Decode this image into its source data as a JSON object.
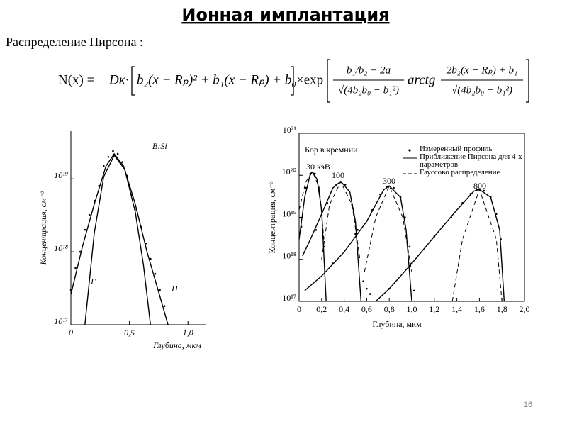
{
  "header": {
    "title": "Ионная имплантация",
    "subtitle": "Распределение Пирсона :"
  },
  "formula": {
    "lhs": "N(x) =",
    "factor": "Dκ·",
    "poly": "b₂(x − Rₚ)² + b₁(x − Rₚ) + b₀",
    "times": "×exp",
    "num1": "b₁/b₂ + 2a",
    "den1": "√(4b₂b₀ − b₁²)",
    "arctg": "arctg",
    "num2": "2b₂(x − Rₚ) + b₁",
    "den2": "√(4b₂b₀ − b₁²)"
  },
  "chart_data": [
    {
      "type": "line",
      "log_y": true,
      "frame": false,
      "xlabel": "Глубина, мкм",
      "ylabel": "Концентрация, см⁻³",
      "xlim": [
        0,
        1.15
      ],
      "ylim": [
        1e+17,
        4.5e+19
      ],
      "xticks": [
        0,
        {
          "value": 0.5,
          "label": "0,5"
        },
        {
          "value": 1.0,
          "label": "1,0"
        }
      ],
      "yticks": [
        {
          "value": 1e+17,
          "label": "10¹⁷"
        },
        {
          "value": 1e+18,
          "label": "10¹⁸"
        },
        {
          "value": 1e+19,
          "label": "10¹⁹"
        }
      ],
      "annotations": [
        "B:Si",
        "Г",
        "П"
      ],
      "series": [
        {
          "style": "points",
          "color": "#000",
          "x": [
            0,
            0.04,
            0.08,
            0.12,
            0.16,
            0.2,
            0.24,
            0.28,
            0.32,
            0.36,
            0.4,
            0.44,
            0.48,
            0.52,
            0.56,
            0.6,
            0.64,
            0.68,
            0.72,
            0.76,
            0.8
          ],
          "values": [
            3e+17,
            6e+17,
            1e+18,
            2e+18,
            3.2e+18,
            5e+18,
            8e+18,
            1.5e+19,
            2e+19,
            2.4e+19,
            2.2e+19,
            1.7e+19,
            1.1e+19,
            6e+18,
            3.8e+18,
            2.2e+18,
            1.3e+18,
            8e+17,
            5e+17,
            3e+17,
            1.8e+17
          ]
        },
        {
          "style": "solid",
          "color": "#000",
          "x": [
            0.12,
            0.2,
            0.28,
            0.37,
            0.46,
            0.55,
            0.62,
            0.68
          ],
          "values": [
            1e+17,
            1.8e+18,
            1.07e+19,
            2.1e+19,
            1.35e+19,
            3.5e+18,
            6.6e+17,
            1e+17
          ]
        },
        {
          "style": "solid",
          "color": "#000",
          "x": [
            0,
            0.1,
            0.2,
            0.3,
            0.37,
            0.45,
            0.55,
            0.65,
            0.75,
            0.83
          ],
          "values": [
            2.6e+17,
            1.2e+18,
            4.5e+18,
            1.5e+19,
            2.2e+19,
            1.5e+19,
            4.5e+18,
            1e+18,
            2.8e+17,
            1e+17
          ]
        }
      ]
    },
    {
      "type": "line",
      "log_y": true,
      "frame": true,
      "xlabel": "Глубина, мкм",
      "ylabel": "Концентрация, см⁻³",
      "xlim": [
        0,
        2.0
      ],
      "ylim": [
        1e+17,
        1e+21
      ],
      "legend": "upper right",
      "xticks": [
        0,
        {
          "value": 0.2,
          "label": "0,2"
        },
        {
          "value": 0.4,
          "label": "0,4"
        },
        {
          "value": 0.6,
          "label": "0,6"
        },
        {
          "value": 0.8,
          "label": "0,8"
        },
        {
          "value": 1.0,
          "label": "1,0"
        },
        {
          "value": 1.2,
          "label": "1,2"
        },
        {
          "value": 1.4,
          "label": "1,4"
        },
        {
          "value": 1.6,
          "label": "1,6"
        },
        {
          "value": 1.8,
          "label": "1,8"
        },
        {
          "value": 2.0,
          "label": "2,0"
        }
      ],
      "yticks": [
        {
          "value": 1e+17,
          "label": "10¹⁷"
        },
        {
          "value": 1e+18,
          "label": "10¹⁸"
        },
        {
          "value": 1e+19,
          "label": "10¹⁹"
        },
        {
          "value": 1e+20,
          "label": "10²⁰"
        },
        {
          "value": 1e+21,
          "label": "10²¹"
        }
      ],
      "annotations": [
        "Бор в кремнии",
        "30 кэВ",
        "100",
        "300",
        "800"
      ],
      "series": [
        {
          "name": "Измеренный профиль",
          "style": "points",
          "color": "#000",
          "x": [
            0.02,
            0.06,
            0.1,
            0.14,
            0.18,
            0.22,
            0.05,
            0.15,
            0.25,
            0.33,
            0.41,
            0.47,
            0.52,
            0.57,
            0.6,
            0.63,
            0.3,
            0.5,
            0.65,
            0.72,
            0.78,
            0.84,
            0.9,
            0.94,
            0.98,
            1.02,
            0.8,
            1.0,
            1.2,
            1.35,
            1.45,
            1.52,
            1.58,
            1.64,
            1.7,
            1.75,
            1.79
          ],
          "values": [
            6e+18,
            5e+19,
            1.1e+20,
            1.1e+20,
            4e+19,
            2e+18,
            1.5e+18,
            5e+18,
            2.2e+19,
            6e+19,
            6e+19,
            2e+19,
            5e+18,
            3e+17,
            2e+17,
            1.5e+17,
            8e+17,
            4e+18,
            1.5e+19,
            3.5e+19,
            5.4e+19,
            5e+19,
            3e+19,
            1e+19,
            2e+18,
            1.8e+17,
            2e+17,
            8e+17,
            3.5e+18,
            1e+19,
            2.2e+19,
            3.6e+19,
            4.6e+19,
            4.3e+19,
            3e+19,
            1.2e+19,
            3e+18
          ]
        },
        {
          "name": "Приближение Пирсона для 4-х параметров",
          "style": "solid",
          "color": "#000",
          "x": [
            0,
            0.05,
            0.1,
            0.12,
            0.16,
            0.2,
            0.24,
            null,
            0.03,
            0.1,
            0.2,
            0.3,
            0.37,
            0.45,
            0.5,
            0.55,
            null,
            0.05,
            0.2,
            0.4,
            0.6,
            0.75,
            0.8,
            0.9,
            0.95,
            1.0,
            null,
            0.68,
            0.8,
            1.0,
            1.2,
            1.4,
            1.55,
            1.6,
            1.7,
            1.78,
            1.82
          ],
          "values": [
            3e+18,
            3e+19,
            1.1e+20,
            1.2e+20,
            8e+19,
            1.5e+19,
            1e+17,
            null,
            1.2e+18,
            3e+18,
            1.2e+19,
            5e+19,
            7.2e+19,
            4e+19,
            8e+18,
            1e+17,
            null,
            1.8e+17,
            4e+17,
            1.5e+18,
            8e+18,
            4.5e+19,
            5.6e+19,
            3e+19,
            5e+18,
            1e+17,
            null,
            1e+17,
            2e+17,
            8e+17,
            3.5e+18,
            1.5e+19,
            4.2e+19,
            4.6e+19,
            3e+19,
            5e+18,
            1e+17
          ]
        },
        {
          "name": "Гауссово распределение",
          "style": "dashed",
          "color": "#000",
          "x": [
            0,
            0.06,
            0.12,
            0.18,
            0.22,
            null,
            0.2,
            0.27,
            0.37,
            0.47,
            0.54,
            null,
            0.58,
            0.68,
            0.8,
            0.92,
            1.0,
            null,
            1.36,
            1.45,
            1.6,
            1.75,
            1.8
          ],
          "values": [
            1.5e+19,
            7e+19,
            1.2e+20,
            5e+19,
            3e+18,
            null,
            1e+18,
            2e+19,
            7e+19,
            2e+19,
            1e+18,
            null,
            5e+17,
            1e+19,
            5.6e+19,
            1e+19,
            5e+17,
            null,
            1e+17,
            3e+18,
            4.6e+19,
            3e+18,
            1e+17
          ]
        }
      ]
    }
  ],
  "footer": {
    "page": "16"
  }
}
